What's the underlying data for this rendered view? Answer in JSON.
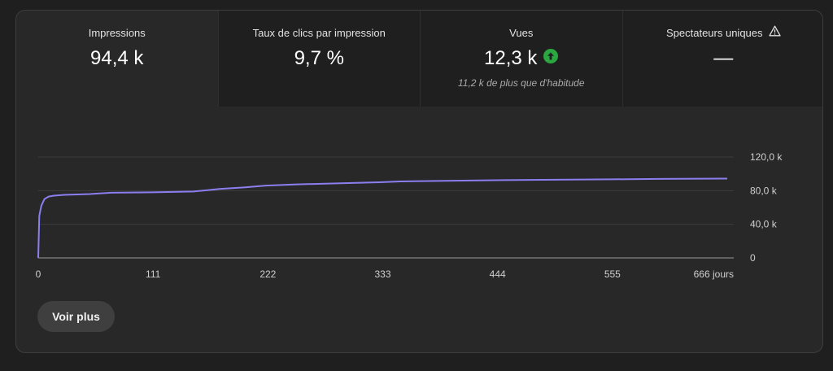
{
  "tabs": [
    {
      "label": "Impressions",
      "value": "94,4 k"
    },
    {
      "label": "Taux de clics par impression",
      "value": "9,7 %"
    },
    {
      "label": "Vues",
      "value": "12,3 k",
      "subtext": "11,2 k de plus que d'habitude",
      "trend_icon": "arrow-up-circle-icon"
    },
    {
      "label": "Spectateurs uniques",
      "value": "—",
      "info_icon": "warning-triangle-icon"
    }
  ],
  "chart_data": {
    "type": "line",
    "x_unit": "jours",
    "xlim": [
      0,
      666
    ],
    "ylim": [
      0,
      120000
    ],
    "x_ticks": [
      "0",
      "111",
      "222",
      "333",
      "444",
      "555",
      "666 jours"
    ],
    "y_ticks": [
      "120,0 k",
      "80,0 k",
      "40,0 k",
      "0"
    ],
    "line_color": "#8b7ff0",
    "grid": true,
    "series": [
      {
        "x": [
          0,
          1,
          3,
          6,
          10,
          15,
          25,
          50,
          70,
          110,
          150,
          175,
          200,
          220,
          250,
          300,
          330,
          350,
          450,
          500,
          555,
          600,
          666
        ],
        "y": [
          0,
          50000,
          62000,
          70000,
          73000,
          74000,
          75000,
          76000,
          77500,
          78000,
          79000,
          82000,
          84000,
          86000,
          87500,
          89000,
          90000,
          91000,
          92500,
          93000,
          93500,
          94000,
          94400
        ]
      }
    ]
  },
  "actions": {
    "see_more": "Voir plus"
  }
}
